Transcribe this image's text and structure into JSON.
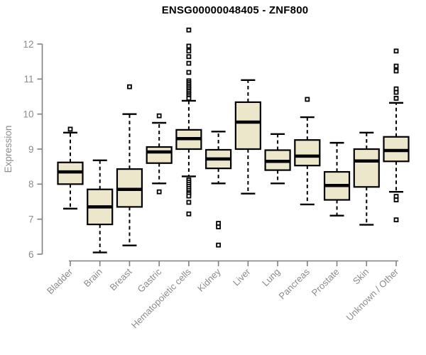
{
  "header": {
    "title": "ENSG00000048405 - ZNF800"
  },
  "chart_data": {
    "type": "boxplot",
    "title": "ENSG00000048405 - ZNF800",
    "xlabel": "",
    "ylabel": "Expression",
    "ylim": [
      6,
      12
    ],
    "yticks": [
      6,
      7,
      8,
      9,
      10,
      11,
      12
    ],
    "grid": false,
    "legend": false,
    "categories": [
      "Bladder",
      "Brain",
      "Breast",
      "Gastric",
      "Hematopoietic cells",
      "Kidney",
      "Liver",
      "Lung",
      "Pancreas",
      "Prostate",
      "Skin",
      "Unknown / Other"
    ],
    "series": [
      {
        "name": "Bladder",
        "low": 7.3,
        "q1": 8.0,
        "median": 8.35,
        "q3": 8.62,
        "high": 9.47,
        "outliers": [
          9.57
        ]
      },
      {
        "name": "Brain",
        "low": 6.05,
        "q1": 6.85,
        "median": 7.35,
        "q3": 7.85,
        "high": 8.68,
        "outliers": []
      },
      {
        "name": "Breast",
        "low": 6.25,
        "q1": 7.35,
        "median": 7.85,
        "q3": 8.43,
        "high": 10.0,
        "outliers": [
          10.78
        ]
      },
      {
        "name": "Gastric",
        "low": 8.02,
        "q1": 8.6,
        "median": 8.92,
        "q3": 9.06,
        "high": 9.75,
        "outliers": [
          9.95,
          7.78
        ]
      },
      {
        "name": "Hematopoietic cells",
        "low": 8.22,
        "q1": 9.0,
        "median": 9.3,
        "q3": 9.55,
        "high": 10.38,
        "outliers": [
          12.4,
          11.94,
          11.8,
          11.64,
          11.45,
          11.19,
          10.95,
          10.9,
          10.85,
          10.8,
          10.75,
          10.7,
          10.65,
          10.6,
          10.55,
          10.5,
          10.45,
          8.12,
          8.06,
          8.0,
          7.94,
          7.88,
          7.82,
          7.76,
          7.72,
          7.66,
          7.48,
          7.15
        ]
      },
      {
        "name": "Kidney",
        "low": 8.02,
        "q1": 8.45,
        "median": 8.72,
        "q3": 8.98,
        "high": 9.5,
        "outliers": [
          6.88,
          6.78,
          6.26
        ]
      },
      {
        "name": "Liver",
        "low": 7.73,
        "q1": 9.0,
        "median": 9.77,
        "q3": 10.34,
        "high": 10.97,
        "outliers": []
      },
      {
        "name": "Lung",
        "low": 8.02,
        "q1": 8.4,
        "median": 8.65,
        "q3": 8.97,
        "high": 9.43,
        "outliers": []
      },
      {
        "name": "Pancreas",
        "low": 7.42,
        "q1": 8.53,
        "median": 8.8,
        "q3": 9.26,
        "high": 9.91,
        "outliers": [
          10.42
        ]
      },
      {
        "name": "Prostate",
        "low": 7.1,
        "q1": 7.55,
        "median": 7.96,
        "q3": 8.35,
        "high": 9.18,
        "outliers": []
      },
      {
        "name": "Skin",
        "low": 6.84,
        "q1": 7.92,
        "median": 8.66,
        "q3": 9.0,
        "high": 9.47,
        "outliers": []
      },
      {
        "name": "Unknown / Other",
        "low": 7.78,
        "q1": 8.65,
        "median": 8.96,
        "q3": 9.35,
        "high": 10.32,
        "outliers": [
          11.8,
          11.37,
          11.23,
          10.72,
          10.62,
          10.45,
          7.65,
          7.55,
          6.98
        ]
      }
    ],
    "colors": {
      "box_fill": "#ECE6CB",
      "box_stroke": "#000000",
      "median": "#000000",
      "whisker": "#000000",
      "outlier_stroke": "#000000",
      "axis": "#808080",
      "tick_labels": "#8C8C8C",
      "title": "#000000",
      "background": "#FFFFFF"
    }
  }
}
